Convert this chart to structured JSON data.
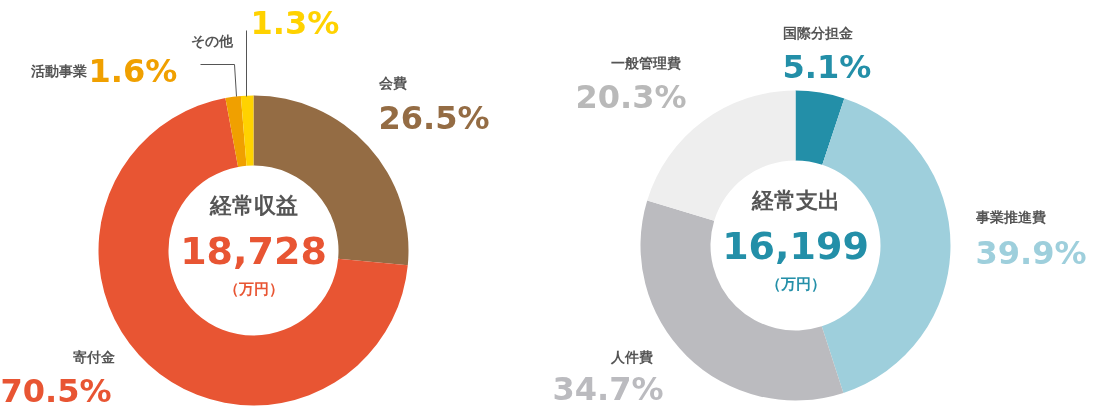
{
  "chart_data": [
    {
      "type": "donut",
      "title": "経常収益",
      "annotations": [
        "18,728",
        "（万円）"
      ],
      "categories": [
        "会費",
        "寄付金",
        "活動事業",
        "その他"
      ],
      "values": [
        26.5,
        70.5,
        1.6,
        1.3
      ],
      "colors": [
        "#946c44",
        "#e85533",
        "#f0a000",
        "#ffd200"
      ],
      "value_labels": [
        "26.5%",
        "70.5%",
        "1.6%",
        "1.3%"
      ]
    },
    {
      "type": "donut",
      "title": "経常支出",
      "annotations": [
        "16,199",
        "（万円）"
      ],
      "categories": [
        "国際分担金",
        "事業推進費",
        "人件費",
        "一般管理費"
      ],
      "values": [
        5.1,
        39.9,
        34.7,
        20.3
      ],
      "colors": [
        "#238fa8",
        "#9ecfdc",
        "#bbbbbf",
        "#eeeeee"
      ],
      "value_labels": [
        "5.1%",
        "39.9%",
        "34.7%",
        "20.3%"
      ]
    }
  ]
}
